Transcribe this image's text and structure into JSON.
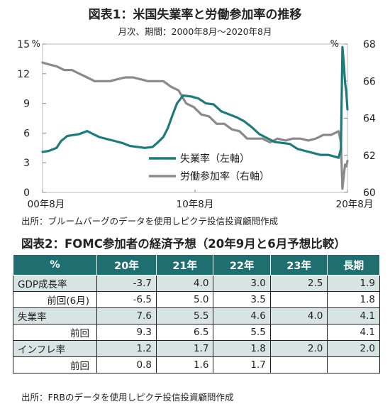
{
  "figure1": {
    "title": "図表1：米国失業率と労働参加率の推移",
    "subtitle": "月次、期間：2000年8月～2020年8月",
    "source": "出所：ブルームバーグのデータを使用しピクテ投信投資顧問作成"
  },
  "chart_data": {
    "type": "line",
    "x_tick_labels": [
      "00年8月",
      "10年8月",
      "20年8月"
    ],
    "left_axis": {
      "unit": "%",
      "ylim": [
        0,
        15
      ],
      "ticks": [
        "0",
        "3",
        "6",
        "9",
        "12",
        "15"
      ]
    },
    "right_axis": {
      "unit": "%",
      "ylim": [
        60,
        68
      ],
      "ticks": [
        "60",
        "62",
        "64",
        "66",
        "68"
      ]
    },
    "x_range": [
      2000.58,
      2020.58
    ],
    "grid": false,
    "legend_position": "bottom-right",
    "series": [
      {
        "name": "失業率（左軸）",
        "axis": "left",
        "color": "#1f7a7a",
        "x": [
          2000.58,
          2001.0,
          2001.5,
          2001.8,
          2002.2,
          2002.6,
          2003.0,
          2003.5,
          2003.9,
          2004.3,
          2004.8,
          2005.3,
          2005.8,
          2006.3,
          2006.8,
          2007.3,
          2007.8,
          2008.1,
          2008.5,
          2008.8,
          2009.1,
          2009.4,
          2009.8,
          2010.3,
          2010.8,
          2011.3,
          2011.8,
          2012.3,
          2012.8,
          2013.3,
          2013.8,
          2014.3,
          2014.8,
          2015.3,
          2015.8,
          2016.3,
          2016.8,
          2017.3,
          2017.8,
          2018.3,
          2018.8,
          2019.3,
          2019.8,
          2020.0,
          2020.15,
          2020.25,
          2020.33,
          2020.42,
          2020.5,
          2020.58
        ],
        "values": [
          4.1,
          4.2,
          4.5,
          5.2,
          5.7,
          5.8,
          5.9,
          6.2,
          5.9,
          5.6,
          5.4,
          5.2,
          5.0,
          4.7,
          4.6,
          4.5,
          4.6,
          5.0,
          5.6,
          6.5,
          7.8,
          9.0,
          9.8,
          9.7,
          9.5,
          9.0,
          8.9,
          8.2,
          7.9,
          7.6,
          7.2,
          6.6,
          5.9,
          5.5,
          5.1,
          5.0,
          4.9,
          4.4,
          4.2,
          4.0,
          3.8,
          3.8,
          3.6,
          3.5,
          4.4,
          14.7,
          13.3,
          11.1,
          10.2,
          8.4
        ]
      },
      {
        "name": "労働参加率（右軸）",
        "axis": "right",
        "color": "#8a8a8a",
        "x": [
          2000.58,
          2001.0,
          2001.5,
          2002.0,
          2002.5,
          2003.0,
          2003.5,
          2004.0,
          2004.5,
          2005.0,
          2005.5,
          2006.0,
          2006.5,
          2007.0,
          2007.5,
          2008.0,
          2008.5,
          2009.0,
          2009.5,
          2010.0,
          2010.5,
          2011.0,
          2011.5,
          2012.0,
          2012.5,
          2013.0,
          2013.5,
          2014.0,
          2014.5,
          2015.0,
          2015.5,
          2016.0,
          2016.5,
          2017.0,
          2017.5,
          2018.0,
          2018.5,
          2019.0,
          2019.5,
          2020.0,
          2020.15,
          2020.25,
          2020.33,
          2020.42,
          2020.5,
          2020.58
        ],
        "values": [
          67.0,
          66.9,
          66.8,
          66.6,
          66.6,
          66.4,
          66.2,
          66.0,
          66.0,
          66.0,
          66.1,
          66.2,
          66.2,
          66.1,
          66.0,
          66.0,
          66.0,
          65.7,
          65.5,
          64.8,
          64.6,
          64.2,
          64.1,
          63.7,
          63.7,
          63.4,
          63.3,
          62.9,
          62.9,
          62.9,
          62.7,
          62.9,
          62.8,
          62.9,
          62.9,
          62.8,
          62.9,
          63.1,
          63.1,
          63.3,
          62.7,
          60.2,
          60.8,
          61.5,
          61.4,
          61.7
        ]
      }
    ]
  },
  "figure2": {
    "title": "図表2：FOMC参加者の経済予想（20年9月と6月予想比較）",
    "source": "出所：FRBのデータを使用しピクテ投信投資顧問作成",
    "headers": [
      "%",
      "20年",
      "21年",
      "22年",
      "23年",
      "長期"
    ],
    "rows": [
      {
        "type": "main",
        "label": "GDP成長率",
        "cells": [
          "-3.7",
          "4.0",
          "3.0",
          "2.5",
          "1.9"
        ]
      },
      {
        "type": "sub",
        "label": "前回(6月)",
        "cells": [
          "-6.5",
          "5.0",
          "3.5",
          "",
          "1.8"
        ]
      },
      {
        "type": "main",
        "label": "失業率",
        "cells": [
          "7.6",
          "5.5",
          "4.6",
          "4.0",
          "4.1"
        ]
      },
      {
        "type": "sub",
        "label": "前回",
        "cells": [
          "9.3",
          "6.5",
          "5.5",
          "",
          "4.1"
        ]
      },
      {
        "type": "main",
        "label": "インフレ率",
        "cells": [
          "1.2",
          "1.7",
          "1.8",
          "2.0",
          "2.0"
        ]
      },
      {
        "type": "sub",
        "label": "前回",
        "cells": [
          "0.8",
          "1.6",
          "1.7",
          "",
          ""
        ]
      }
    ]
  }
}
